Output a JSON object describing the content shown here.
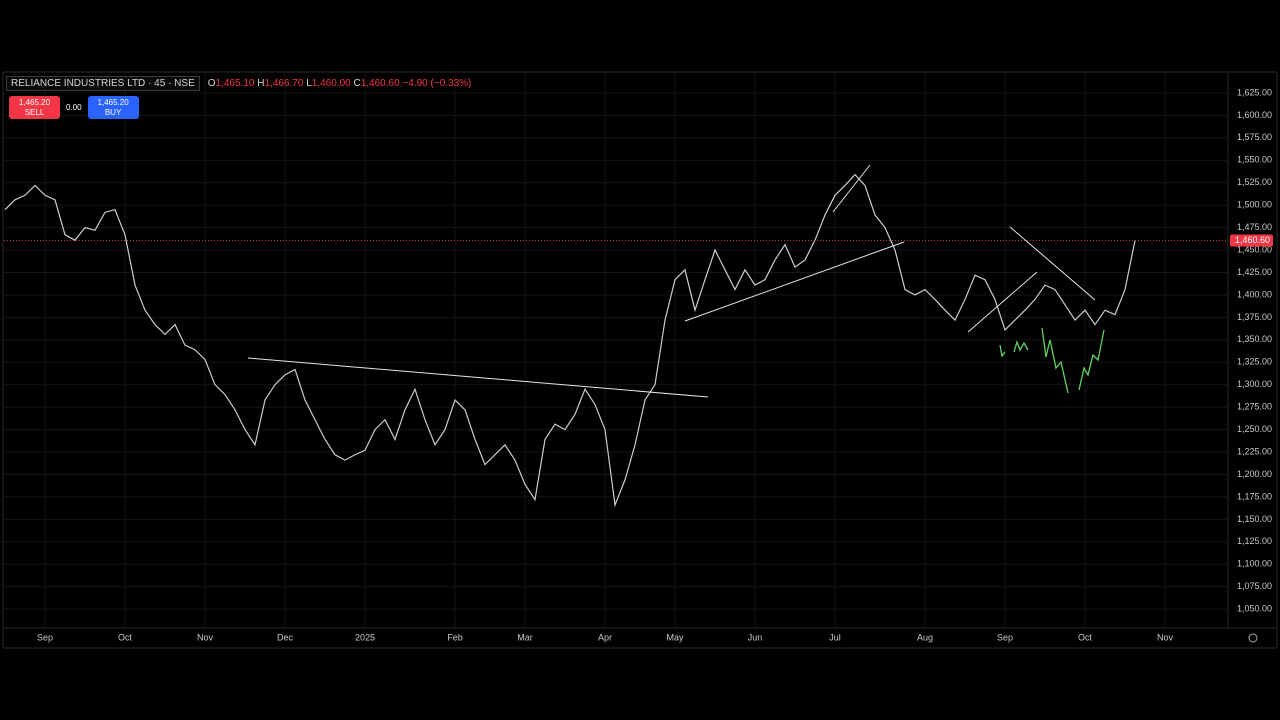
{
  "header": {
    "symbol": "RELIANCE INDUSTRIES LTD · 45 · NSE",
    "ohlc": [
      {
        "label": "O",
        "value": "1,465.10"
      },
      {
        "label": "H",
        "value": "1,466.70"
      },
      {
        "label": "L",
        "value": "1,460.00"
      },
      {
        "label": "C",
        "value": "1,460.60"
      }
    ],
    "change": "−4.90 (−0.33%)"
  },
  "trade": {
    "sell_price": "1,465.20",
    "sell_label": "SELL",
    "spread": "0.00",
    "buy_price": "1,465.20",
    "buy_label": "BUY"
  },
  "chart_data": {
    "type": "line",
    "color": "#c9ccd4",
    "categories": [
      null,
      null,
      null,
      null,
      "Sep",
      null,
      null,
      null,
      null,
      null,
      null,
      null,
      "Oct",
      null,
      null,
      null,
      null,
      null,
      null,
      null,
      "Nov",
      null,
      null,
      null,
      null,
      null,
      null,
      null,
      "Dec",
      null,
      null,
      null,
      null,
      null,
      null,
      null,
      "2025",
      null,
      null,
      null,
      null,
      null,
      null,
      null,
      null,
      "Feb",
      null,
      null,
      null,
      null,
      null,
      null,
      "Mar",
      null,
      null,
      null,
      null,
      null,
      null,
      null,
      "Apr",
      null,
      null,
      null,
      null,
      null,
      null,
      "May",
      null,
      null,
      null,
      null,
      null,
      null,
      null,
      "Jun",
      null,
      null,
      null,
      null,
      null,
      null,
      null,
      "Jul",
      null,
      null,
      null,
      null,
      null,
      null,
      null,
      null,
      "Aug",
      null,
      null,
      null,
      null,
      null,
      null,
      null,
      "Sep",
      null,
      null,
      null,
      null,
      null,
      null,
      null,
      "Oct",
      null,
      null,
      null,
      null,
      null,
      null,
      null,
      "Nov",
      null,
      null,
      null,
      null,
      null,
      null
    ],
    "values": [
      1495,
      1506,
      1511,
      1522,
      1511,
      1506,
      1467,
      1461,
      1475,
      1472,
      1492,
      1495,
      1467,
      1411,
      1383,
      1367,
      1356,
      1367,
      1344,
      1339,
      1328,
      1300,
      1289,
      1272,
      1250,
      1233,
      1283,
      1300,
      1311,
      1317,
      1283,
      1261,
      1239,
      1222,
      1216,
      1222,
      1227,
      1250,
      1261,
      1239,
      1272,
      1295,
      1261,
      1233,
      1250,
      1283,
      1272,
      1239,
      1211,
      1222,
      1233,
      1216,
      1189,
      1172,
      1239,
      1256,
      1250,
      1267,
      1295,
      1278,
      1250,
      1166,
      1194,
      1233,
      1283,
      1300,
      1372,
      1417,
      1428,
      1383,
      1417,
      1450,
      1428,
      1406,
      1428,
      1411,
      1417,
      1439,
      1456,
      1431,
      1439,
      1461,
      1489,
      1511,
      1522,
      1534,
      1522,
      1489,
      1475,
      1450,
      1406,
      1400,
      1406,
      1395,
      1383,
      1372,
      1395,
      1422,
      1417,
      1395,
      1361,
      1372,
      1383,
      1395,
      1411,
      1406,
      1389,
      1372,
      1383,
      1367,
      1383,
      1378,
      1406,
      1460.6,
      null,
      null,
      null,
      null,
      null,
      null,
      null,
      null,
      null
    ],
    "price_line": {
      "value": 1460.6,
      "label": "1,460.60",
      "color": "#f23645"
    },
    "ylim": [
      1029,
      1645
    ],
    "yticks": [
      {
        "value": 1050,
        "label": "1,050.00"
      },
      {
        "value": 1075,
        "label": "1,075.00"
      },
      {
        "value": 1100,
        "label": "1,100.00"
      },
      {
        "value": 1125,
        "label": "1,125.00"
      },
      {
        "value": 1150,
        "label": "1,150.00"
      },
      {
        "value": 1175,
        "label": "1,175.00"
      },
      {
        "value": 1200,
        "label": "1,200.00"
      },
      {
        "value": 1225,
        "label": "1,225.00"
      },
      {
        "value": 1250,
        "label": "1,250.00"
      },
      {
        "value": 1275,
        "label": "1,275.00"
      },
      {
        "value": 1300,
        "label": "1,300.00"
      },
      {
        "value": 1325,
        "label": "1,325.00"
      },
      {
        "value": 1350,
        "label": "1,350.00"
      },
      {
        "value": 1375,
        "label": "1,375.00"
      },
      {
        "value": 1400,
        "label": "1,400.00"
      },
      {
        "value": 1425,
        "label": "1,425.00"
      },
      {
        "value": 1450,
        "label": "1,450.00"
      },
      {
        "value": 1475,
        "label": "1,475.00"
      },
      {
        "value": 1500,
        "label": "1,500.00"
      },
      {
        "value": 1525,
        "label": "1,525.00"
      },
      {
        "value": 1550,
        "label": "1,550.00"
      },
      {
        "value": 1575,
        "label": "1,575.00"
      },
      {
        "value": 1600,
        "label": "1,600.00"
      },
      {
        "value": 1625,
        "label": "1,625.00"
      }
    ],
    "grid": true
  }
}
